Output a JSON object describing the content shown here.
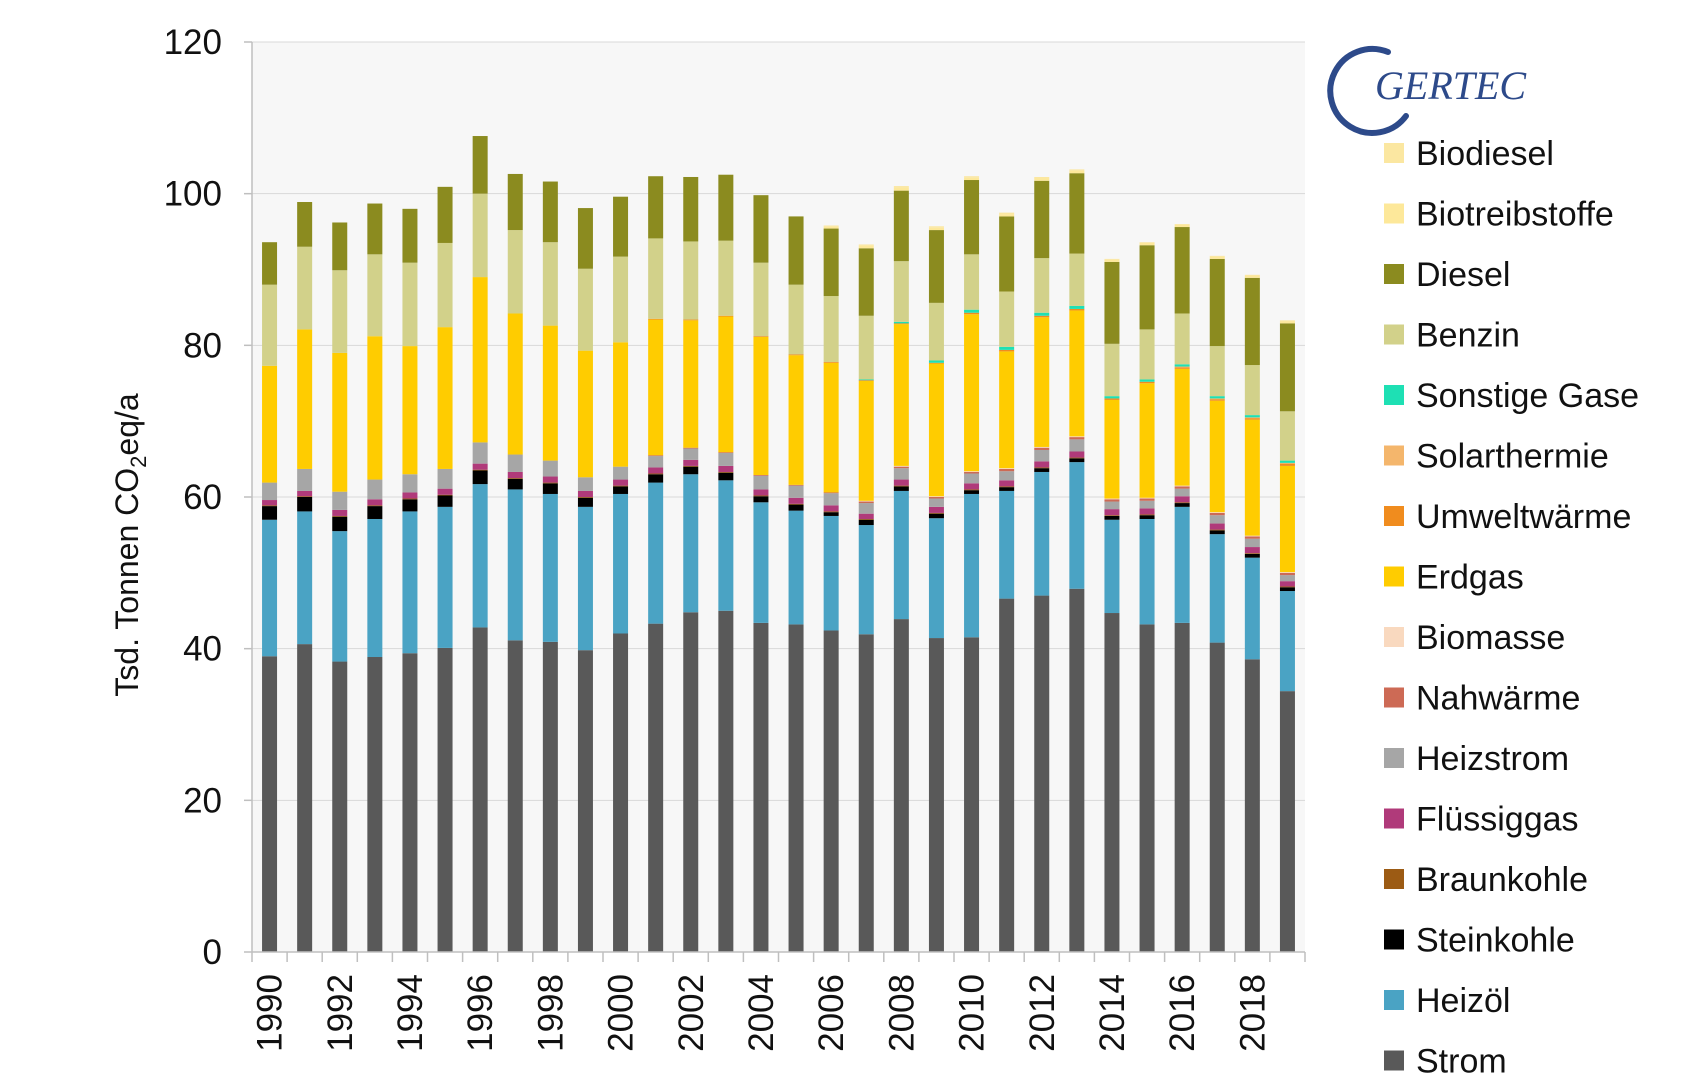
{
  "logo": {
    "text": "GERTEC"
  },
  "chart_data": {
    "type": "bar",
    "stacked": true,
    "title": "",
    "xlabel": "",
    "ylabel": "Tsd. Tonnen CO2eq/a",
    "ylabel_parts": {
      "main": "Tsd. Tonnen CO",
      "sub": "2",
      "rest": "eq/a"
    },
    "ylim": [
      0,
      120
    ],
    "yticks": [
      0,
      20,
      40,
      60,
      80,
      100,
      120
    ],
    "grid": true,
    "legend_position": "right",
    "categories": [
      "1990",
      "1991",
      "1992",
      "1993",
      "1994",
      "1995",
      "1996",
      "1997",
      "1998",
      "1999",
      "2000",
      "2001",
      "2002",
      "2003",
      "2004",
      "2005",
      "2006",
      "2007",
      "2008",
      "2009",
      "2010",
      "2011",
      "2012",
      "2013",
      "2014",
      "2015",
      "2016",
      "2017",
      "2018",
      "2019"
    ],
    "xtick_labels": [
      "1990",
      "1992",
      "1994",
      "1996",
      "1998",
      "2000",
      "2002",
      "2004",
      "2006",
      "2008",
      "2010",
      "2012",
      "2014",
      "2016",
      "2018"
    ],
    "series": [
      {
        "name": "Strom",
        "color": "#595959",
        "values": [
          39.0,
          40.6,
          38.3,
          38.9,
          39.4,
          40.1,
          42.8,
          41.1,
          40.9,
          39.8,
          42.0,
          43.3,
          44.8,
          45.0,
          43.4,
          43.2,
          42.4,
          41.9,
          43.9,
          41.4,
          41.5,
          46.6,
          47.0,
          47.9,
          44.7,
          43.2,
          43.4,
          40.8,
          38.6,
          34.4
        ]
      },
      {
        "name": "Heizöl",
        "color": "#4aa3c4",
        "values": [
          18.0,
          17.5,
          17.2,
          18.2,
          18.7,
          18.6,
          18.9,
          19.9,
          19.5,
          18.9,
          18.4,
          18.6,
          18.2,
          17.2,
          15.9,
          15.0,
          15.1,
          14.4,
          16.9,
          15.8,
          18.9,
          14.2,
          16.3,
          16.7,
          12.3,
          13.9,
          15.3,
          14.3,
          13.4,
          13.2
        ]
      },
      {
        "name": "Steinkohle",
        "color": "#000000",
        "values": [
          1.8,
          1.9,
          1.9,
          1.7,
          1.6,
          1.5,
          1.8,
          1.4,
          1.4,
          1.2,
          1.0,
          1.1,
          1.0,
          1.0,
          0.8,
          0.8,
          0.5,
          0.7,
          0.6,
          0.6,
          0.5,
          0.5,
          0.5,
          0.5,
          0.5,
          0.5,
          0.5,
          0.5,
          0.5,
          0.5
        ]
      },
      {
        "name": "Braunkohle",
        "color": "#9c5b14",
        "values": [
          0.1,
          0.1,
          0.1,
          0.1,
          0.1,
          0.1,
          0.1,
          0.1,
          0.1,
          0.1,
          0.1,
          0.1,
          0.1,
          0.1,
          0.1,
          0.1,
          0.1,
          0.1,
          0.1,
          0.1,
          0.1,
          0.1,
          0.1,
          0.1,
          0.1,
          0.1,
          0.1,
          0.1,
          0.1,
          0.1
        ]
      },
      {
        "name": "Flüssiggas",
        "color": "#b03a7a",
        "values": [
          0.7,
          0.7,
          0.8,
          0.8,
          0.8,
          0.8,
          0.8,
          0.8,
          0.8,
          0.8,
          0.8,
          0.8,
          0.8,
          0.8,
          0.8,
          0.8,
          0.8,
          0.7,
          0.8,
          0.8,
          0.8,
          0.8,
          0.8,
          0.8,
          0.8,
          0.8,
          0.8,
          0.8,
          0.8,
          0.7
        ]
      },
      {
        "name": "Heizstrom",
        "color": "#a6a6a6",
        "values": [
          2.3,
          2.9,
          2.4,
          2.6,
          2.4,
          2.6,
          2.8,
          2.3,
          2.1,
          1.8,
          1.7,
          1.5,
          1.5,
          1.7,
          1.8,
          1.6,
          1.6,
          1.4,
          1.5,
          1.1,
          1.3,
          1.2,
          1.5,
          1.6,
          1.0,
          1.0,
          1.0,
          1.1,
          1.1,
          0.8
        ]
      },
      {
        "name": "Nahwärme",
        "color": "#cd6a55",
        "values": [
          0.0,
          0.0,
          0.0,
          0.0,
          0.0,
          0.0,
          0.0,
          0.0,
          0.0,
          0.0,
          0.0,
          0.1,
          0.1,
          0.1,
          0.1,
          0.1,
          0.1,
          0.2,
          0.2,
          0.2,
          0.2,
          0.3,
          0.3,
          0.3,
          0.3,
          0.3,
          0.3,
          0.3,
          0.3,
          0.3
        ]
      },
      {
        "name": "Biomasse",
        "color": "#f9d9bf",
        "values": [
          0.0,
          0.0,
          0.0,
          0.0,
          0.0,
          0.0,
          0.0,
          0.0,
          0.0,
          0.0,
          0.0,
          0.0,
          0.0,
          0.0,
          0.0,
          0.0,
          0.0,
          0.1,
          0.1,
          0.1,
          0.1,
          0.1,
          0.1,
          0.1,
          0.1,
          0.1,
          0.1,
          0.1,
          0.1,
          0.1
        ]
      },
      {
        "name": "Erdgas",
        "color": "#ffcc00",
        "values": [
          15.4,
          18.4,
          18.3,
          18.9,
          16.9,
          18.7,
          21.8,
          18.6,
          17.8,
          16.7,
          16.4,
          17.9,
          16.8,
          17.9,
          18.2,
          17.1,
          17.1,
          15.8,
          18.7,
          17.5,
          20.7,
          15.4,
          17.1,
          16.6,
          13.0,
          15.1,
          15.4,
          14.7,
          15.3,
          14.0
        ]
      },
      {
        "name": "Umweltwärme",
        "color": "#f08c1e",
        "values": [
          0.0,
          0.0,
          0.0,
          0.0,
          0.0,
          0.0,
          0.0,
          0.0,
          0.0,
          0.0,
          0.0,
          0.1,
          0.1,
          0.1,
          0.1,
          0.1,
          0.1,
          0.1,
          0.1,
          0.1,
          0.2,
          0.2,
          0.2,
          0.2,
          0.2,
          0.2,
          0.2,
          0.2,
          0.2,
          0.3
        ]
      },
      {
        "name": "Solarthermie",
        "color": "#f4b66c",
        "values": [
          0.0,
          0.0,
          0.0,
          0.0,
          0.0,
          0.0,
          0.0,
          0.0,
          0.0,
          0.0,
          0.0,
          0.0,
          0.0,
          0.0,
          0.0,
          0.0,
          0.0,
          0.0,
          0.0,
          0.0,
          0.0,
          0.0,
          0.0,
          0.0,
          0.0,
          0.0,
          0.1,
          0.1,
          0.1,
          0.1
        ]
      },
      {
        "name": "Sonstige Gase",
        "color": "#1ee0b4",
        "values": [
          0.0,
          0.0,
          0.0,
          0.0,
          0.0,
          0.0,
          0.0,
          0.0,
          0.0,
          0.0,
          0.0,
          0.0,
          0.0,
          0.0,
          0.0,
          0.0,
          0.0,
          0.1,
          0.2,
          0.3,
          0.4,
          0.4,
          0.4,
          0.4,
          0.3,
          0.3,
          0.3,
          0.3,
          0.3,
          0.3
        ]
      },
      {
        "name": "Benzin",
        "color": "#d2d18a",
        "values": [
          10.7,
          10.9,
          10.9,
          10.8,
          11.0,
          11.1,
          11.0,
          11.0,
          11.0,
          10.8,
          11.3,
          10.6,
          10.3,
          9.9,
          9.7,
          9.2,
          8.7,
          8.4,
          8.0,
          7.6,
          7.3,
          7.3,
          7.2,
          6.9,
          6.9,
          6.6,
          6.7,
          6.6,
          6.6,
          6.5
        ]
      },
      {
        "name": "Diesel",
        "color": "#8b8b1f",
        "values": [
          5.6,
          5.9,
          6.3,
          6.7,
          7.1,
          7.4,
          7.6,
          7.4,
          8.0,
          8.0,
          7.9,
          8.2,
          8.5,
          8.7,
          8.9,
          9.0,
          8.9,
          8.9,
          9.3,
          9.6,
          9.8,
          9.9,
          10.2,
          10.6,
          10.8,
          11.1,
          11.4,
          11.5,
          11.5,
          11.6
        ]
      },
      {
        "name": "Biotreibstoffe",
        "color": "#fde89a",
        "values": [
          0.0,
          0.0,
          0.0,
          0.0,
          0.0,
          0.0,
          0.0,
          0.0,
          0.0,
          0.0,
          0.0,
          0.0,
          0.0,
          0.0,
          0.0,
          0.0,
          0.3,
          0.4,
          0.4,
          0.3,
          0.3,
          0.3,
          0.3,
          0.3,
          0.3,
          0.3,
          0.3,
          0.3,
          0.3,
          0.3
        ]
      },
      {
        "name": "Biodiesel",
        "color": "#fbe7a1",
        "values": [
          0.0,
          0.0,
          0.0,
          0.0,
          0.0,
          0.0,
          0.0,
          0.0,
          0.0,
          0.0,
          0.0,
          0.0,
          0.0,
          0.0,
          0.0,
          0.0,
          0.1,
          0.1,
          0.2,
          0.2,
          0.2,
          0.2,
          0.2,
          0.2,
          0.1,
          0.1,
          0.1,
          0.1,
          0.1,
          0.1
        ]
      }
    ]
  }
}
